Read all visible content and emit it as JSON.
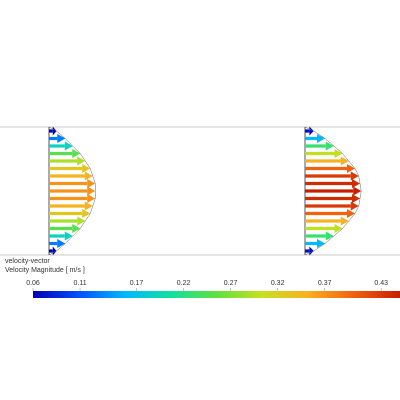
{
  "legend": {
    "title": "velocity-vector",
    "subtitle": "Velocity Magnitude [ m/s ]",
    "range": [
      0.06,
      0.45
    ],
    "ticks": [
      0.06,
      0.11,
      0.17,
      0.22,
      0.27,
      0.32,
      0.37,
      0.43
    ],
    "colormap": [
      "#0000b4",
      "#0050ff",
      "#00b8ff",
      "#10e0a0",
      "#60e040",
      "#c8e020",
      "#f8b020",
      "#f06010",
      "#c81e00"
    ]
  },
  "profiles": [
    {
      "values": [
        0.06,
        0.13,
        0.19,
        0.25,
        0.29,
        0.33,
        0.35,
        0.37,
        0.37,
        0.37,
        0.35,
        0.33,
        0.29,
        0.25,
        0.19,
        0.13,
        0.06
      ]
    },
    {
      "values": [
        0.07,
        0.16,
        0.23,
        0.3,
        0.35,
        0.4,
        0.43,
        0.44,
        0.45,
        0.44,
        0.43,
        0.4,
        0.35,
        0.3,
        0.23,
        0.16,
        0.07
      ]
    }
  ]
}
